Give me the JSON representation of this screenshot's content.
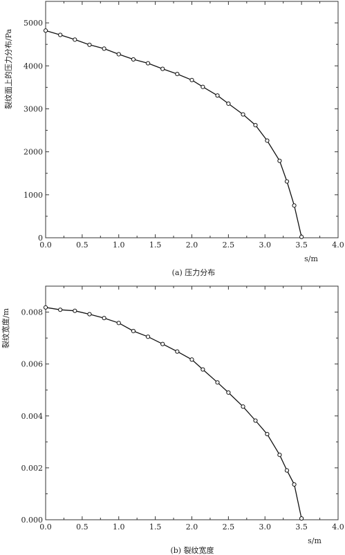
{
  "chart_data": [
    {
      "type": "line",
      "caption": "(a) 压力分布",
      "xlabel": "s/m",
      "ylabel": "裂纹面上的压力分布/Pa",
      "xlim": [
        0,
        4
      ],
      "ylim": [
        0,
        5500
      ],
      "xticks": [
        "0.0",
        "0.5",
        "1.0",
        "1.5",
        "2.0",
        "2.5",
        "3.0",
        "3.5",
        "4.0"
      ],
      "yticks": [
        "0",
        "1000",
        "2000",
        "3000",
        "4000",
        "5000"
      ],
      "series": [
        {
          "marker": "open-circle",
          "x": [
            0.0,
            0.2,
            0.4,
            0.6,
            0.8,
            1.0,
            1.2,
            1.4,
            1.6,
            1.8,
            2.0,
            2.15,
            2.35,
            2.5,
            2.7,
            2.87,
            3.03,
            3.2,
            3.3,
            3.4,
            3.5
          ],
          "y": [
            4820,
            4720,
            4610,
            4490,
            4400,
            4270,
            4150,
            4060,
            3930,
            3810,
            3670,
            3510,
            3310,
            3120,
            2870,
            2620,
            2260,
            1790,
            1310,
            750,
            20
          ]
        }
      ]
    },
    {
      "type": "line",
      "caption": "(b) 裂纹宽度",
      "xlabel": "s/m",
      "ylabel": "裂纹宽度/m",
      "xlim": [
        0,
        4
      ],
      "ylim": [
        0,
        0.009
      ],
      "xticks": [
        "0.0",
        "0.5",
        "1.0",
        "1.5",
        "2.0",
        "2.5",
        "3.0",
        "3.5",
        "4.0"
      ],
      "yticks": [
        "0.000",
        "0.002",
        "0.004",
        "0.006",
        "0.008"
      ],
      "series": [
        {
          "marker": "open-circle",
          "x": [
            0.0,
            0.2,
            0.4,
            0.6,
            0.8,
            1.0,
            1.2,
            1.4,
            1.6,
            1.8,
            2.0,
            2.15,
            2.35,
            2.5,
            2.7,
            2.87,
            3.03,
            3.2,
            3.3,
            3.4,
            3.5
          ],
          "y": [
            0.00818,
            0.00809,
            0.00805,
            0.00792,
            0.00777,
            0.00758,
            0.00727,
            0.00705,
            0.00677,
            0.00648,
            0.00617,
            0.00579,
            0.00529,
            0.0049,
            0.00436,
            0.00382,
            0.0033,
            0.0025,
            0.0019,
            0.00136,
            5e-05
          ]
        }
      ]
    }
  ]
}
